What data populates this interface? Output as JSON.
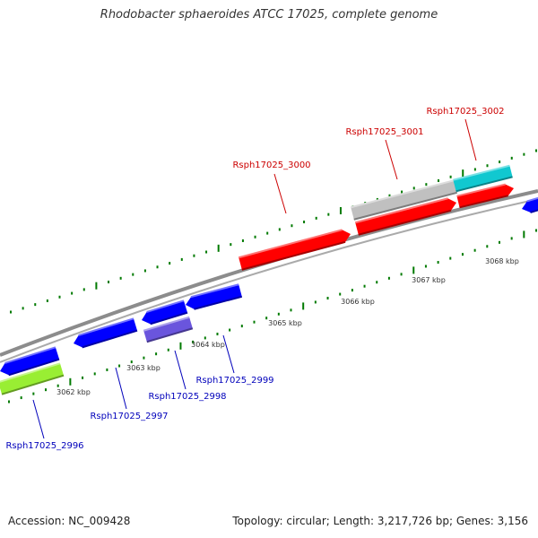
{
  "title": "Rhodobacter sphaeroides ATCC 17025, complete genome",
  "footer": {
    "accession": "Accession: NC_009428",
    "topology": "Topology: circular; Length: 3,217,726 bp; Genes: 3,156"
  },
  "colors": {
    "backbone": "#8c8c8c",
    "tick": "#007a00",
    "scale_label": "#333333",
    "label_top": "#cc0000",
    "label_bottom": "#0000bb",
    "leader_top": "#cc0000",
    "leader_bottom": "#0000bb"
  },
  "scale_labels": [
    "3062 kbp",
    "3063 kbp",
    "3064 kbp",
    "3065 kbp",
    "3066 kbp",
    "3067 kbp",
    "3068 kbp"
  ],
  "genes_top": [
    {
      "name": "Rsph17025_3000",
      "color": "#ff0000"
    },
    {
      "name": "Rsph17025_3001",
      "color": "#c0c0c0"
    },
    {
      "name": "Rsph17025_3002",
      "color": "#11c8d0"
    }
  ],
  "genes_bottom": [
    {
      "name": "Rsph17025_2996",
      "color": "#99ee33"
    },
    {
      "name": "Rsph17025_2997",
      "color": "#0000ff"
    },
    {
      "name": "Rsph17025_2998",
      "color": "#6a55dd"
    },
    {
      "name": "Rsph17025_2999",
      "color": "#0000ff"
    }
  ]
}
